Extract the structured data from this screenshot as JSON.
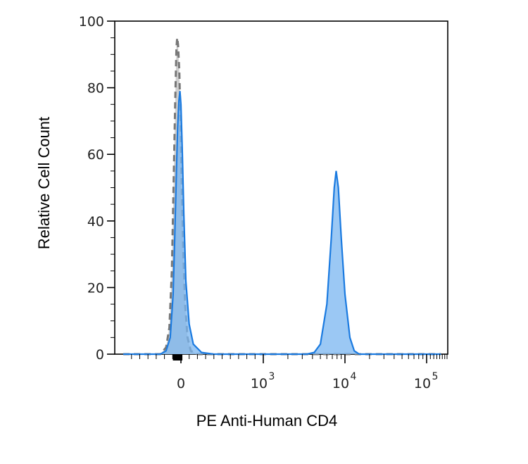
{
  "chart_data": {
    "type": "area",
    "title": "",
    "xlabel": "PE Anti-Human CD4",
    "ylabel": "Relative Cell Count",
    "xscale": "biexponential",
    "xlim": [
      -700,
      150000
    ],
    "ylim": [
      0,
      100
    ],
    "grid": false,
    "legend": "none",
    "y_ticks": [
      {
        "value": 0,
        "label": "0"
      },
      {
        "value": 20,
        "label": "20"
      },
      {
        "value": 40,
        "label": "40"
      },
      {
        "value": 60,
        "label": "60"
      },
      {
        "value": 80,
        "label": "80"
      },
      {
        "value": 100,
        "label": "100"
      }
    ],
    "x_ticks": [
      {
        "value": 0,
        "base": "0",
        "exp": ""
      },
      {
        "value": 1000,
        "base": "10",
        "exp": "3"
      },
      {
        "value": 10000,
        "base": "10",
        "exp": "4"
      },
      {
        "value": 100000,
        "base": "10",
        "exp": "5"
      }
    ],
    "series": [
      {
        "style": "filled-gray-dashed",
        "color": "#c8c8c8",
        "line_color": "#777777",
        "points": [
          [
            -700,
            0
          ],
          [
            -250,
            0
          ],
          [
            -180,
            2
          ],
          [
            -140,
            8
          ],
          [
            -110,
            25
          ],
          [
            -90,
            50
          ],
          [
            -70,
            75
          ],
          [
            -55,
            92
          ],
          [
            -45,
            95
          ],
          [
            -35,
            93
          ],
          [
            -20,
            85
          ],
          [
            -5,
            70
          ],
          [
            10,
            50
          ],
          [
            30,
            30
          ],
          [
            50,
            15
          ],
          [
            80,
            5
          ],
          [
            120,
            1
          ],
          [
            200,
            0
          ],
          [
            150000,
            0
          ]
        ]
      },
      {
        "style": "filled-blue",
        "color": "#7ab6f0",
        "line_color": "#1a7ae0",
        "points": [
          [
            -700,
            0
          ],
          [
            -250,
            0
          ],
          [
            -180,
            1
          ],
          [
            -130,
            5
          ],
          [
            -95,
            18
          ],
          [
            -75,
            35
          ],
          [
            -55,
            55
          ],
          [
            -40,
            68
          ],
          [
            -25,
            76
          ],
          [
            -12,
            79
          ],
          [
            0,
            75
          ],
          [
            15,
            62
          ],
          [
            35,
            42
          ],
          [
            60,
            22
          ],
          [
            100,
            9
          ],
          [
            150,
            3
          ],
          [
            250,
            0.5
          ],
          [
            400,
            0
          ],
          [
            3400,
            0
          ],
          [
            4200,
            0.5
          ],
          [
            5000,
            3
          ],
          [
            6000,
            15
          ],
          [
            6800,
            35
          ],
          [
            7400,
            50
          ],
          [
            7800,
            55
          ],
          [
            8300,
            50
          ],
          [
            9000,
            35
          ],
          [
            10000,
            18
          ],
          [
            11500,
            5
          ],
          [
            13000,
            1
          ],
          [
            15000,
            0
          ],
          [
            150000,
            0
          ]
        ]
      }
    ]
  }
}
